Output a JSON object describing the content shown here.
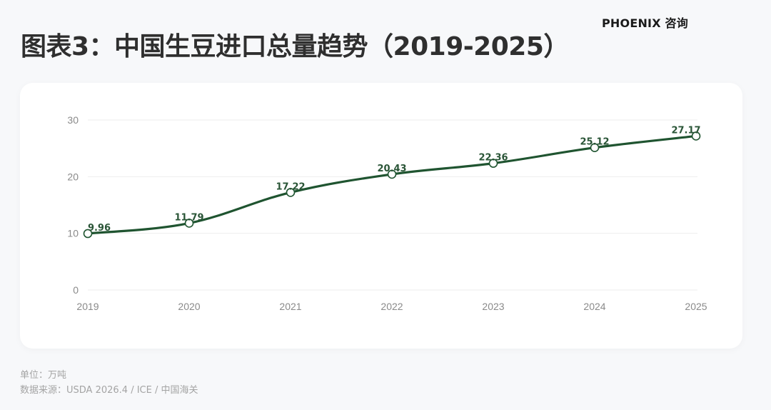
{
  "header": {
    "title": "图表3：中国生豆进口总量趋势（2019-2025）",
    "brand": "PHOENIX 咨询"
  },
  "footer": {
    "unit": "单位：万吨",
    "source": "数据来源：USDA 2026.4 / ICE / 中国海关"
  },
  "colors": {
    "line": "#1f5430",
    "label": "#2a5537",
    "grid": "#eeeeee",
    "axis_text": "#8a8a8a",
    "card_bg": "#ffffff",
    "page_bg": "#f7f8fa"
  },
  "chart_data": {
    "type": "line",
    "title": "图表3：中国生豆进口总量趋势（2019-2025）",
    "xlabel": "",
    "ylabel": "万吨",
    "categories": [
      "2019",
      "2020",
      "2021",
      "2022",
      "2023",
      "2024",
      "2025"
    ],
    "series": [
      {
        "name": "中国生豆进口总量",
        "values": [
          9.96,
          11.79,
          17.22,
          20.43,
          22.36,
          25.12,
          27.17
        ],
        "smooth": true,
        "markers": "hollow-circle",
        "data_labels": [
          "9.96",
          "11.79",
          "17.22",
          "20.43",
          "22.36",
          "25.12",
          "27.17"
        ]
      }
    ],
    "yticks": [
      "0",
      "10",
      "20",
      "30"
    ],
    "ylim": [
      0,
      30
    ],
    "grid": "horizontal",
    "legend": "none",
    "annotations": [
      "单位：万吨",
      "数据来源：USDA 2026.4 / ICE / 中国海关"
    ]
  }
}
